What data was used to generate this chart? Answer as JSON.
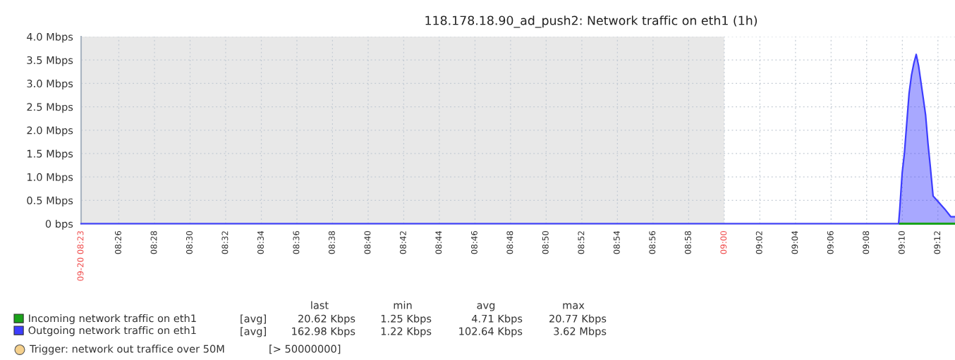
{
  "chart_data": {
    "type": "area",
    "title": "118.178.18.90_ad_push2: Network traffic on eth1 (1h)",
    "xlim": [
      8.398,
      9.216
    ],
    "xticks": [
      {
        "value": 8.398,
        "label": "09-20 08:23"
      },
      {
        "value": 8.4333,
        "label": "08:26"
      },
      {
        "value": 8.4667,
        "label": "08:28"
      },
      {
        "value": 8.5,
        "label": "08:30"
      },
      {
        "value": 8.5333,
        "label": "08:32"
      },
      {
        "value": 8.5667,
        "label": "08:34"
      },
      {
        "value": 8.6,
        "label": "08:36"
      },
      {
        "value": 8.6333,
        "label": "08:38"
      },
      {
        "value": 8.6667,
        "label": "08:40"
      },
      {
        "value": 8.7,
        "label": "08:42"
      },
      {
        "value": 8.7333,
        "label": "08:44"
      },
      {
        "value": 8.7667,
        "label": "08:46"
      },
      {
        "value": 8.8,
        "label": "08:48"
      },
      {
        "value": 8.8333,
        "label": "08:50"
      },
      {
        "value": 8.8667,
        "label": "08:52"
      },
      {
        "value": 8.9,
        "label": "08:54"
      },
      {
        "value": 8.9333,
        "label": "08:56"
      },
      {
        "value": 8.9667,
        "label": "08:58"
      },
      {
        "value": 9.0,
        "label": "09:00"
      },
      {
        "value": 9.0333,
        "label": "09:02"
      },
      {
        "value": 9.0667,
        "label": "09:04"
      },
      {
        "value": 9.1,
        "label": "09:06"
      },
      {
        "value": 9.1333,
        "label": "09:08"
      },
      {
        "value": 9.1667,
        "label": "09:10"
      },
      {
        "value": 9.2,
        "label": "09:12"
      }
    ],
    "ylim": [
      0,
      4
    ],
    "yticks": [
      {
        "value": 0,
        "label": "0 bps"
      },
      {
        "value": 0.5,
        "label": "0.5 Mbps"
      },
      {
        "value": 1.0,
        "label": "1.0 Mbps"
      },
      {
        "value": 1.5,
        "label": "1.5 Mbps"
      },
      {
        "value": 2.0,
        "label": "2.0 Mbps"
      },
      {
        "value": 2.5,
        "label": "2.5 Mbps"
      },
      {
        "value": 3.0,
        "label": "3.0 Mbps"
      },
      {
        "value": 3.5,
        "label": "3.5 Mbps"
      },
      {
        "value": 4.0,
        "label": "4.0 Mbps"
      }
    ],
    "series": [
      {
        "name": "Incoming network traffic on eth1",
        "type": "line",
        "color": "#1aa31a",
        "x": [
          9.1643,
          9.216
        ],
        "values": [
          0,
          0
        ]
      },
      {
        "name": "Outgoing network traffic on eth1",
        "color": "#3d3dff",
        "x": [
          8.398,
          9.1632,
          9.1643,
          9.1665,
          9.1687,
          9.1709,
          9.173,
          9.1753,
          9.1775,
          9.1797,
          9.1819,
          9.1841,
          9.1863,
          9.1885,
          9.1907,
          9.1929,
          9.1955,
          9.1988,
          9.2065,
          9.212,
          9.216
        ],
        "values": [
          0,
          0,
          0.31,
          1.07,
          1.52,
          2.17,
          2.78,
          3.18,
          3.43,
          3.62,
          3.38,
          3.03,
          2.68,
          2.32,
          1.72,
          1.22,
          0.59,
          0.51,
          0.31,
          0.15,
          0.15
        ]
      }
    ],
    "bands": [
      {
        "axis": "x",
        "from": 8.398,
        "to": 9.0,
        "color": "#e8e8e8"
      }
    ],
    "grid": true,
    "legend": "bottom",
    "annotations": [
      "last",
      "min",
      "avg",
      "max",
      "[avg]",
      "20.62 Kbps",
      "1.25 Kbps",
      "4.71 Kbps",
      "20.77 Kbps",
      "[avg]",
      "162.98 Kbps",
      "1.22 Kbps",
      "102.64 Kbps",
      "3.62 Mbps",
      "Trigger: network out traffice over 50M",
      "[> 50000000]"
    ]
  }
}
